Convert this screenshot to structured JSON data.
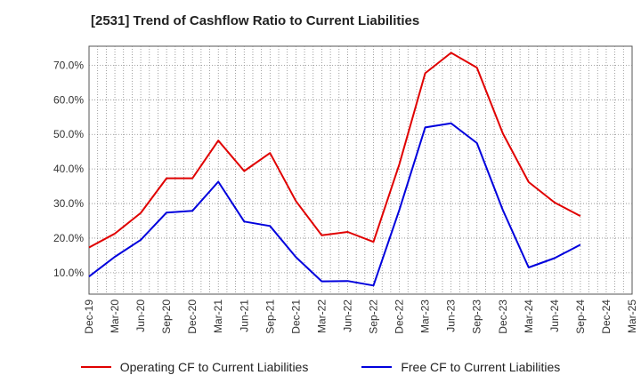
{
  "chart_data": {
    "type": "line",
    "title": "[2531]  Trend of Cashflow Ratio to Current Liabilities",
    "x": [
      "Dec-19",
      "Mar-20",
      "Jun-20",
      "Sep-20",
      "Dec-20",
      "Mar-21",
      "Jun-21",
      "Sep-21",
      "Dec-21",
      "Mar-22",
      "Jun-22",
      "Sep-22",
      "Dec-22",
      "Mar-23",
      "Jun-23",
      "Sep-23",
      "Dec-23",
      "Mar-24",
      "Jun-24",
      "Sep-24",
      "Dec-24",
      "Mar-25"
    ],
    "x_tick_labels": [
      "Dec-19",
      "Mar-20",
      "Jun-20",
      "Sep-20",
      "Dec-20",
      "Mar-21",
      "Jun-21",
      "Sep-21",
      "Dec-21",
      "Mar-22",
      "Jun-22",
      "Sep-22",
      "Dec-22",
      "Mar-23",
      "Jun-23",
      "Sep-23",
      "Dec-23",
      "Mar-24",
      "Jun-24",
      "Sep-24",
      "Dec-24",
      "Mar-25"
    ],
    "y_tick_labels": [
      "10.0%",
      "20.0%",
      "30.0%",
      "40.0%",
      "50.0%",
      "60.0%",
      "70.0%"
    ],
    "y_ticks": [
      10,
      20,
      30,
      40,
      50,
      60,
      70
    ],
    "ylim": [
      3.8,
      75.5
    ],
    "grid": true,
    "legend_position": "bottom",
    "series": [
      {
        "name": "Operating CF to Current Liabilities",
        "color": "#e00000",
        "values": [
          17.3,
          21.3,
          27.3,
          37.3,
          37.3,
          48.2,
          39.4,
          44.6,
          30.7,
          20.8,
          21.8,
          18.9,
          41.4,
          67.7,
          73.6,
          69.3,
          50.3,
          36.2,
          30.3,
          26.4,
          null,
          null
        ]
      },
      {
        "name": "Free CF to Current Liabilities",
        "color": "#0000dd",
        "values": [
          8.9,
          14.6,
          19.5,
          27.4,
          27.9,
          36.3,
          24.8,
          23.5,
          14.5,
          7.5,
          7.6,
          6.3,
          28.2,
          52.0,
          53.2,
          47.5,
          28.1,
          11.5,
          14.2,
          18.1,
          null,
          null
        ]
      }
    ]
  }
}
